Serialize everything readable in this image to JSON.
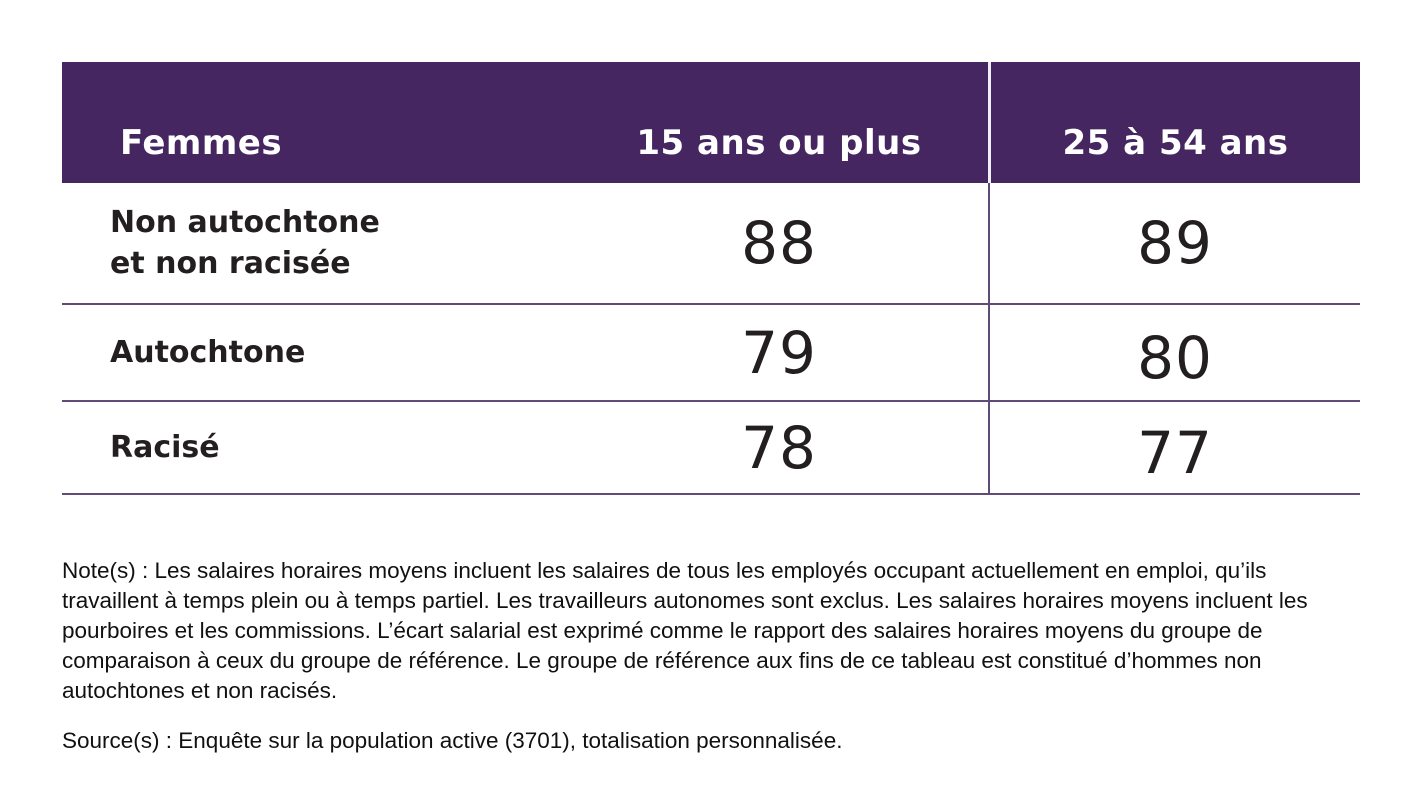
{
  "table": {
    "header": {
      "group_label": "Femmes",
      "col1_label": "15 ans ou plus",
      "col2_label": "25 à 54 ans"
    },
    "rows": [
      {
        "label": "Non autochtone\net non racisée",
        "col1": "88",
        "col2": "89"
      },
      {
        "label": "Autochtone",
        "col1": "79",
        "col2": "80"
      },
      {
        "label": "Racisé",
        "col1": "78",
        "col2": "77"
      }
    ]
  },
  "notes": {
    "note_text": "Note(s) : Les salaires horaires moyens incluent les salaires de tous les employés occupant actuellement en emploi, qu’ils travaillent à temps plein ou à temps partiel. Les travailleurs autonomes sont exclus. Les salaires horaires moyens incluent les pourboires et les commissions. L’écart salarial est exprimé comme le rapport des salaires horaires moyens du groupe de comparaison à ceux du groupe de référence. Le groupe de référence aux fins de ce tableau est constitué d’hommes non autochtones et non racisés.",
    "source_text": "Source(s) : Enquête sur la population active (3701), totalisation personnalisée."
  },
  "colors": {
    "header_bg": "#452661",
    "header_text": "#ffffff",
    "grid_line": "#5f4b76",
    "header_divider": "#f2eef6",
    "body_text": "#231f20"
  },
  "chart_data": {
    "type": "table",
    "title": "Femmes",
    "columns": [
      "Femmes",
      "15 ans ou plus",
      "25 à 54 ans"
    ],
    "rows": [
      {
        "category": "Non autochtone et non racisée",
        "15_ans_ou_plus": 88,
        "25_a_54_ans": 89
      },
      {
        "category": "Autochtone",
        "15_ans_ou_plus": 79,
        "25_a_54_ans": 80
      },
      {
        "category": "Racisé",
        "15_ans_ou_plus": 78,
        "25_a_54_ans": 77
      }
    ],
    "notes": "Note(s) : Les salaires horaires moyens incluent les salaires de tous les employés occupant actuellement en emploi, qu’ils travaillent à temps plein ou à temps partiel. Les travailleurs autonomes sont exclus. Les salaires horaires moyens incluent les pourboires et les commissions. L’écart salarial est exprimé comme le rapport des salaires horaires moyens du groupe de comparaison à ceux du groupe de référence. Le groupe de référence aux fins de ce tableau est constitué d’hommes non autochtones et non racisés.",
    "source": "Source(s) : Enquête sur la population active (3701), totalisation personnalisée."
  }
}
